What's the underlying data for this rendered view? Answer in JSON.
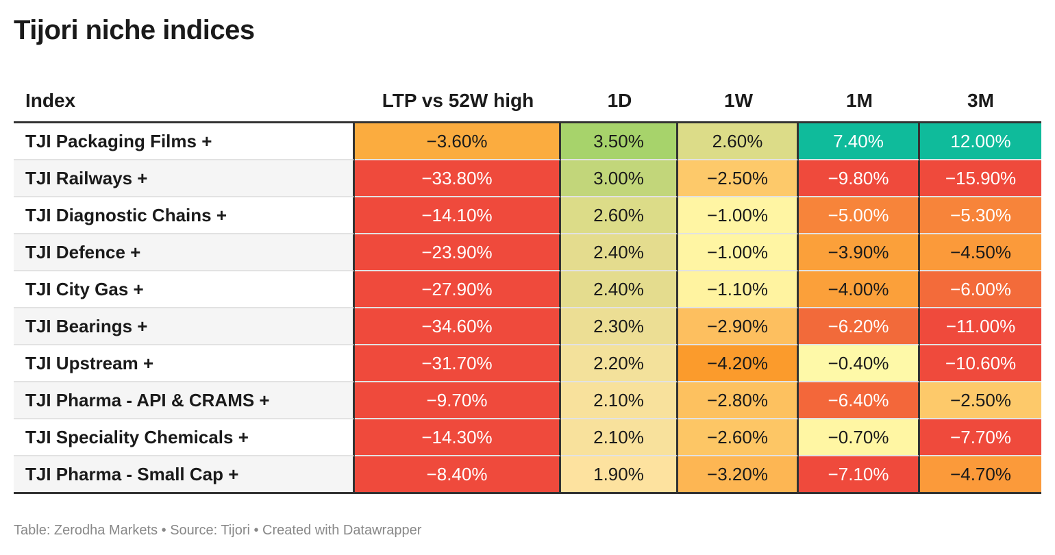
{
  "title": "Tijori niche indices",
  "footer": "Table: Zerodha Markets • Source: Tijori • Created with Datawrapper",
  "chart_data": {
    "type": "table",
    "columns": [
      "Index",
      "LTP vs 52W high",
      "1D",
      "1W",
      "1M",
      "3M"
    ],
    "rows": [
      {
        "name": "TJI Packaging Films +",
        "values": [
          "−3.60%",
          "3.50%",
          "2.60%",
          "7.40%",
          "12.00%"
        ],
        "colors": [
          "#fbac3f",
          "#a7d36b",
          "#dcdc88",
          "#0fbb9b",
          "#0fbb9b"
        ]
      },
      {
        "name": "TJI Railways +",
        "values": [
          "−33.80%",
          "3.00%",
          "−2.50%",
          "−9.80%",
          "−15.90%"
        ],
        "colors": [
          "#ef4a3c",
          "#c2d67a",
          "#fdc96a",
          "#ef4a3c",
          "#ef4a3c"
        ]
      },
      {
        "name": "TJI Diagnostic Chains +",
        "values": [
          "−14.10%",
          "2.60%",
          "−1.00%",
          "−5.00%",
          "−5.30%"
        ],
        "colors": [
          "#ef4a3c",
          "#dcdc88",
          "#fff5a3",
          "#f7843a",
          "#f7843a"
        ]
      },
      {
        "name": "TJI Defence +",
        "values": [
          "−23.90%",
          "2.40%",
          "−1.00%",
          "−3.90%",
          "−4.50%"
        ],
        "colors": [
          "#ef4a3c",
          "#e4dc8e",
          "#fff5a3",
          "#fba03a",
          "#fb9a3a"
        ]
      },
      {
        "name": "TJI City Gas +",
        "values": [
          "−27.90%",
          "2.40%",
          "−1.10%",
          "−4.00%",
          "−6.00%"
        ],
        "colors": [
          "#ef4a3c",
          "#e4dc8e",
          "#fff3a0",
          "#fba03a",
          "#f36b3a"
        ]
      },
      {
        "name": "TJI Bearings +",
        "values": [
          "−34.60%",
          "2.30%",
          "−2.90%",
          "−6.20%",
          "−11.00%"
        ],
        "colors": [
          "#ef4a3c",
          "#ecde94",
          "#fdbf5f",
          "#f26a3a",
          "#ef4a3c"
        ]
      },
      {
        "name": "TJI Upstream +",
        "values": [
          "−31.70%",
          "2.20%",
          "−4.20%",
          "−0.40%",
          "−10.60%"
        ],
        "colors": [
          "#ef4a3c",
          "#f3e19b",
          "#fb9b2c",
          "#fef9a8",
          "#ef4a3c"
        ]
      },
      {
        "name": "TJI Pharma - API & CRAMS +",
        "values": [
          "−9.70%",
          "2.10%",
          "−2.80%",
          "−6.40%",
          "−2.50%"
        ],
        "colors": [
          "#ef4a3c",
          "#f8e19c",
          "#fdc15f",
          "#f3673a",
          "#fdc96a"
        ]
      },
      {
        "name": "TJI Speciality Chemicals +",
        "values": [
          "−14.30%",
          "2.10%",
          "−2.60%",
          "−0.70%",
          "−7.70%"
        ],
        "colors": [
          "#ef4a3c",
          "#f8e19c",
          "#fdc665",
          "#fff6a3",
          "#ef4a3c"
        ]
      },
      {
        "name": "TJI Pharma - Small Cap +",
        "values": [
          "−8.40%",
          "1.90%",
          "−3.20%",
          "−7.10%",
          "−4.70%"
        ],
        "colors": [
          "#ef4a3c",
          "#fde29f",
          "#fdb653",
          "#ef4a3c",
          "#fb9a3a"
        ]
      }
    ],
    "text_light": "#ffffff",
    "text_dark": "#1a1a1a"
  }
}
